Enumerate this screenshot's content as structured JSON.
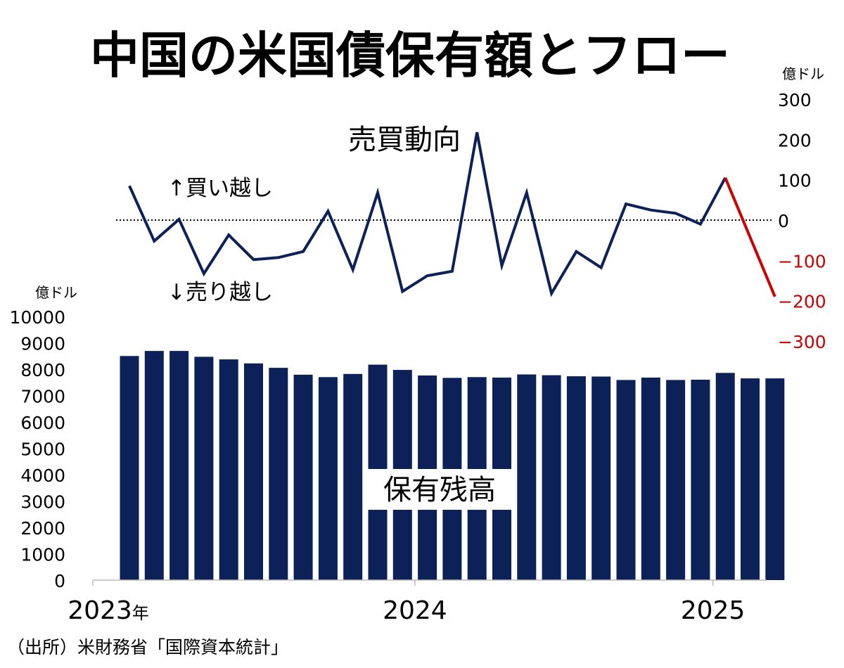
{
  "chart_data": [
    {
      "type": "bar",
      "title": "中国の米国債保有額とフロー",
      "label": "保有残高",
      "unit_label": "億ドル",
      "ylim": [
        0,
        10000
      ],
      "yticks": [
        0,
        1000,
        2000,
        3000,
        4000,
        5000,
        6000,
        7000,
        8000,
        9000,
        10000
      ],
      "x_labels": [
        {
          "year": "2023",
          "suffix": "年"
        },
        {
          "year": "2024",
          "suffix": ""
        },
        {
          "year": "2025",
          "suffix": ""
        }
      ],
      "categories": [
        "2023-01",
        "2023-02",
        "2023-03",
        "2023-04",
        "2023-05",
        "2023-06",
        "2023-07",
        "2023-08",
        "2023-09",
        "2023-10",
        "2023-11",
        "2023-12",
        "2024-01",
        "2024-02",
        "2024-03",
        "2024-04",
        "2024-05",
        "2024-06",
        "2024-07",
        "2024-08",
        "2024-09",
        "2024-10",
        "2024-11",
        "2024-12",
        "2025-01",
        "2025-02",
        "2025-03"
      ],
      "values": [
        8500,
        8690,
        8690,
        8470,
        8370,
        8220,
        8050,
        7790,
        7700,
        7820,
        8170,
        7970,
        7760,
        7670,
        7700,
        7680,
        7800,
        7770,
        7730,
        7720,
        7590,
        7680,
        7590,
        7600,
        7860,
        7650,
        7650
      ],
      "bar_color": "#0d2159"
    },
    {
      "type": "line",
      "label": "売買動向",
      "unit_label": "億ドル",
      "buy_label": "↑買い越し",
      "sell_label": "↓売り越し",
      "ylim": [
        -300,
        300
      ],
      "yticks": [
        300,
        200,
        100,
        0,
        -100,
        -200,
        -300
      ],
      "ytick_labels": [
        "300",
        "200",
        "100",
        "0",
        "−100",
        "−200",
        "−300"
      ],
      "x": [
        "2023-01",
        "2023-02",
        "2023-03",
        "2023-04",
        "2023-05",
        "2023-06",
        "2023-07",
        "2023-08",
        "2023-09",
        "2023-10",
        "2023-11",
        "2023-12",
        "2024-01",
        "2024-02",
        "2024-03",
        "2024-04",
        "2024-05",
        "2024-06",
        "2024-07",
        "2024-08",
        "2024-09",
        "2024-10",
        "2024-11",
        "2024-12",
        "2025-01",
        "2025-02",
        "2025-03"
      ],
      "values": [
        85,
        -52,
        2,
        -133,
        -37,
        -98,
        -93,
        -78,
        22,
        -123,
        68,
        -177,
        -138,
        -127,
        218,
        -113,
        68,
        -182,
        -78,
        -118,
        40,
        25,
        17,
        -10,
        105,
        null,
        -190
      ],
      "line_color": "#0d2159",
      "latest_color": "#cc0000",
      "negative_tick_color": "#cc0000",
      "zero_line": "dotted"
    }
  ],
  "source": "（出所）米財務省「国際資本統計」"
}
